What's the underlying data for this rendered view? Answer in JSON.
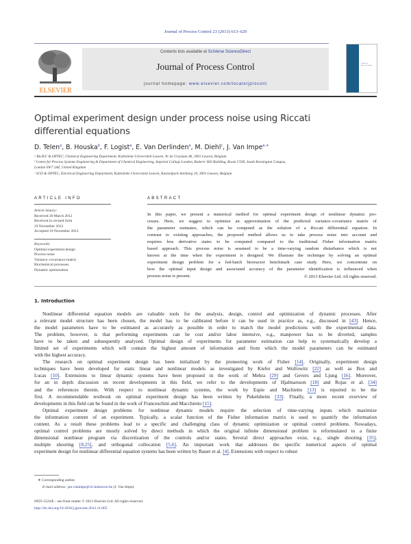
{
  "header": {
    "journal_ref": "Journal of Process Control 23 (2013) 613–629",
    "contents_prefix": "Contents lists available at ",
    "contents_link": "SciVerse ScienceDirect",
    "journal_title": "Journal of Process Control",
    "homepage_prefix": "journal homepage: ",
    "homepage_link": "www.elsevier.com/locate/jprocont",
    "publisher": "ELSEVIER",
    "colors": {
      "publisher": "#f07a1a",
      "link": "#2b3f99",
      "cover": "#1b5d86"
    }
  },
  "article": {
    "title": "Optimal experiment design under process noise using Riccati differential equations",
    "authors": [
      {
        "name": "D. Telen",
        "sup": "a"
      },
      {
        "name": "B. Houska",
        "sup": "b"
      },
      {
        "name": "F. Logist",
        "sup": "a"
      },
      {
        "name": "E. Van Derlinden",
        "sup": "a"
      },
      {
        "name": "M. Diehl",
        "sup": "c"
      },
      {
        "name": "J. Van Impe",
        "sup": "a,∗"
      }
    ],
    "affiliations": [
      "ᵃ BioTeC & OPTEC, Chemical Engineering Department, Katholieke Universiteit Leuven, W. de Croylaan 46, 3001 Leuven, Belgium",
      "ᵇ Centre for Process Systems Engineering & Department of Chemical Engineering, Imperial College London, Roderic Hill Building, Room C509, South Kensington Campus,",
      "London SW7 2AZ, United Kingdom",
      "ᶜ SCD & OPTEC, Electrical Engineering Department, Katholieke Universiteit Leuven, Kasteelpark Arenberg 10, 3001 Leuven, Belgium"
    ]
  },
  "article_info": {
    "heading": "ARTICLE INFO",
    "history_label": "Article history:",
    "history": [
      "Received 20 March 2012",
      "Received in revised form",
      "19 November 2012",
      "Accepted 19 November 2012"
    ],
    "keywords_label": "Keywords:",
    "keywords": [
      "Optimal experiment design",
      "Process noise",
      "Variance–covariance matrix",
      "Biochemical processes",
      "Dynamic optimization"
    ]
  },
  "abstract": {
    "heading": "ABSTRACT",
    "lines": [
      "In this paper, we present a numerical method for optimal experiment design of nonlinear dynamic pro-",
      "cesses. Here, we suggest to optimize an approximation of the predicted variance–covariance matrix of",
      "the parameter estimates, which can be computed as the solution of a Riccati differential equation. In",
      "contrast to existing approaches, the proposed method allows us to take process noise into account and",
      "requires less derivative states to be computed compared to the traditional Fisher information matrix",
      "based approach. This process noise is assumed to be a time-varying random disturbance which is not",
      "known at the time when the experiment is designed. We illustrate the technique by solving an optimal",
      "experiment design problem for a fed-batch bioreactor benchmark case study. Here, we concentrate on",
      "how the optimal input design and associated accuracy of the parameter identification is influenced when",
      "process noise is present."
    ],
    "copyright": "© 2013 Elsevier Ltd. All rights reserved."
  },
  "introduction": {
    "heading": "1.  Introduction",
    "paragraphs": [
      [
        "Nonlinear differential equation models are valuable tools for the analysis, design, control and optimization of dynamic processes. After",
        "a relevant model structure has been chosen, the model has to be calibrated before it can be used in practice as, e.g., discussed in [43]. Hence,",
        "the model parameters have to be estimated as accurately as possible in order to match the model predictions with the experimental data.",
        "The problem, however, is that performing experiments can be cost and/or labor intensive, e.g., manpower has to be diverted, samples",
        "have to be taken and subsequently analyzed. Optimal design of experiments for parameter estimation can help to systematically develop a",
        "limited set of experiments which will contain the highest amount of information and from which the model parameters can be estimated",
        "with the highest accuracy."
      ],
      [
        "The research on optimal experiment design has been initialized by the pioneering work of Fisher [14]. Originally, experiment design",
        "techniques have been developed for static linear and nonlinear models as investigated by Kiefer and Wolfowitz [22] as well as Box and",
        "Lucas [10]. Extensions to linear dynamic systems have been proposed in the work of Mehra [29] and Gevers and Ljung [16]. Moreover,",
        "for an in depth discussion on recent developments in this field, we refer to the developments of Hjalmarsson [18] and Rojas et al. [34]",
        "and the references therein. With respect to nonlinear dynamic systems, the work by Espie and Machietto [13] is reported to be the",
        "first. A recommendable textbook on optimal experiment design has been written by Pukelsheim [33]. Finally, a more recent overview of",
        "developments in this field can be found in the work of Franceschini and Macchietto [15]."
      ],
      [
        "Optimal experiment design problems for nonlinear dynamic models require the selection of time-varying inputs which maximize",
        "the information content of an experiment. Typically, a scalar function of the Fisher information matrix is used to quantify the information",
        "content. As a result these problems lead to a specific and challenging class of dynamic optimization or optimal control problems. Nowadays,",
        "optimal control problems are mostly solved by direct methods in which the original infinite dimensional problem is reformulated to a finite",
        "dimensional nonlinear program via discretization of the controls and/or states. Several direct approaches exist, e.g., single shooting [35],",
        "multiple shooting [8,25], and orthogonal collocation [5,6]. An important work that addresses the specific numerical aspects of optimal",
        "experiment design for nonlinear differential equation systems has been written by Bauer et al. [4]. Extensions with respect to robust"
      ]
    ]
  },
  "footnotes": {
    "corresponding": "∗ Corresponding author.",
    "email_label": "E-mail address: ",
    "email": "jan.vanimpe@cit.kuleuven.be",
    "email_suffix": " (J. Van Impe).",
    "issn": "0959-1524/$ – see front matter © 2013 Elsevier Ltd. All rights reserved.",
    "doi": "http://dx.doi.org/10.1016/j.jprocont.2012.11.005"
  }
}
